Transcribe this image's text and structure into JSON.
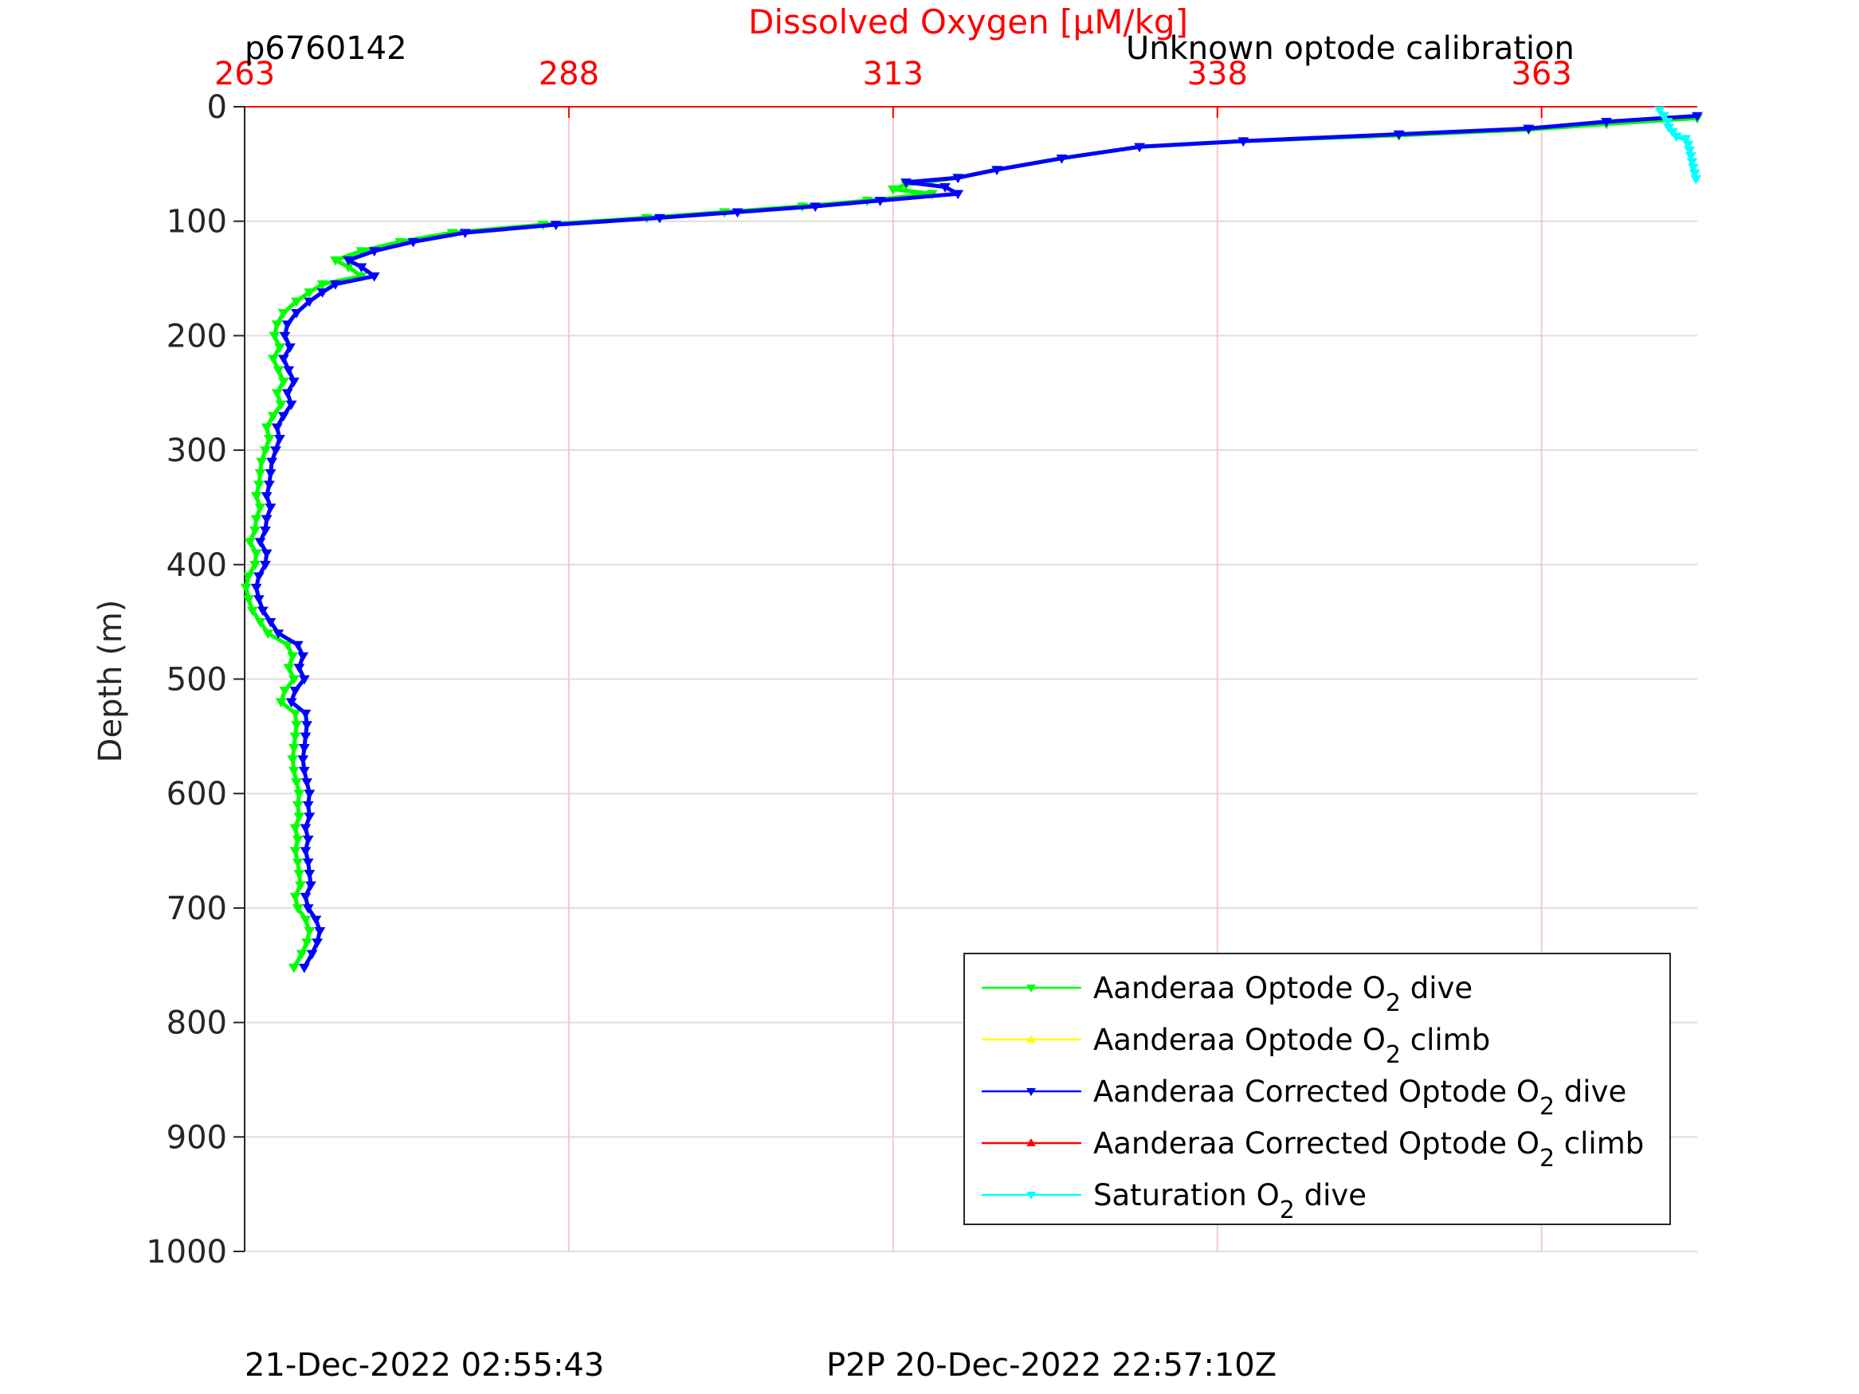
{
  "chart_data": {
    "type": "line",
    "title": "Dissolved Oxygen [μM/kg]",
    "top_left_label": "p6760142",
    "top_right_label": "Unknown optode calibration",
    "xlabel": "Dissolved Oxygen [μM/kg]",
    "ylabel": "Depth (m)",
    "xlim": [
      263,
      375
    ],
    "ylim": [
      0,
      1000
    ],
    "y_reversed": true,
    "x_axis_location": "top",
    "x_ticks": [
      263,
      288,
      313,
      338,
      363
    ],
    "x_tick_labels": [
      "263",
      "288",
      "313",
      "338",
      "363"
    ],
    "y_ticks": [
      0,
      100,
      200,
      300,
      400,
      500,
      600,
      700,
      800,
      900,
      1000
    ],
    "y_tick_labels": [
      "0",
      "100",
      "200",
      "300",
      "400",
      "500",
      "600",
      "700",
      "800",
      "900",
      "1000"
    ],
    "grid": true,
    "legend_position": "bottom-right",
    "series": [
      {
        "name": "Aanderaa Optode O2 dive",
        "legend_main": "Aanderaa Optode O",
        "legend_sub": "2",
        "legend_tail": " dive",
        "color": "#00ff00",
        "marker": "triangle-down",
        "points": [
          [
            375,
            10
          ],
          [
            368,
            15
          ],
          [
            362,
            20
          ],
          [
            352,
            25
          ],
          [
            340,
            30
          ],
          [
            332,
            35
          ],
          [
            326,
            45
          ],
          [
            321,
            55
          ],
          [
            318,
            62
          ],
          [
            314,
            68
          ],
          [
            313,
            72
          ],
          [
            316,
            76
          ],
          [
            311,
            82
          ],
          [
            306,
            87
          ],
          [
            300,
            92
          ],
          [
            294,
            97
          ],
          [
            286,
            103
          ],
          [
            279,
            110
          ],
          [
            275,
            118
          ],
          [
            272,
            126
          ],
          [
            270,
            134
          ],
          [
            271,
            140
          ],
          [
            272,
            148
          ],
          [
            269,
            155
          ],
          [
            268,
            162
          ],
          [
            267,
            170
          ],
          [
            266,
            180
          ],
          [
            265.5,
            190
          ],
          [
            265.3,
            200
          ],
          [
            265.7,
            210
          ],
          [
            265.2,
            220
          ],
          [
            265.6,
            230
          ],
          [
            266,
            240
          ],
          [
            265.5,
            250
          ],
          [
            265.8,
            260
          ],
          [
            265.2,
            270
          ],
          [
            264.7,
            280
          ],
          [
            264.9,
            290
          ],
          [
            264.6,
            300
          ],
          [
            264.3,
            310
          ],
          [
            264.2,
            320
          ],
          [
            264.1,
            330
          ],
          [
            263.9,
            340
          ],
          [
            264.2,
            350
          ],
          [
            263.9,
            360
          ],
          [
            263.8,
            370
          ],
          [
            263.4,
            380
          ],
          [
            263.9,
            390
          ],
          [
            263.8,
            400
          ],
          [
            263.3,
            410
          ],
          [
            263.1,
            420
          ],
          [
            263.3,
            430
          ],
          [
            263.6,
            440
          ],
          [
            264.2,
            450
          ],
          [
            264.8,
            460
          ],
          [
            266.3,
            470
          ],
          [
            266.7,
            480
          ],
          [
            266.4,
            490
          ],
          [
            266.8,
            500
          ],
          [
            266.1,
            510
          ],
          [
            265.8,
            520
          ],
          [
            266.9,
            530
          ],
          [
            267,
            540
          ],
          [
            266.9,
            550
          ],
          [
            266.8,
            560
          ],
          [
            266.7,
            570
          ],
          [
            266.8,
            580
          ],
          [
            267,
            590
          ],
          [
            267.2,
            600
          ],
          [
            267.1,
            610
          ],
          [
            267.2,
            620
          ],
          [
            266.9,
            630
          ],
          [
            267.1,
            640
          ],
          [
            266.9,
            650
          ],
          [
            267.1,
            660
          ],
          [
            267.2,
            670
          ],
          [
            267.3,
            680
          ],
          [
            266.9,
            690
          ],
          [
            267.1,
            700
          ],
          [
            267.7,
            710
          ],
          [
            268,
            720
          ],
          [
            267.8,
            730
          ],
          [
            267.4,
            740
          ],
          [
            266.8,
            752
          ]
        ]
      },
      {
        "name": "Aanderaa Optode O2 climb",
        "legend_main": "Aanderaa Optode O",
        "legend_sub": "2",
        "legend_tail": " climb",
        "color": "#ffff00",
        "marker": "triangle-up",
        "points": []
      },
      {
        "name": "Aanderaa Corrected Optode O2 dive",
        "legend_main": "Aanderaa Corrected Optode O",
        "legend_sub": "2",
        "legend_tail": " dive",
        "color": "#0000ff",
        "marker": "triangle-down",
        "points": [
          [
            375,
            8
          ],
          [
            368,
            13
          ],
          [
            362,
            19
          ],
          [
            352,
            24
          ],
          [
            340,
            30
          ],
          [
            332,
            35
          ],
          [
            326,
            45
          ],
          [
            321,
            55
          ],
          [
            318,
            62
          ],
          [
            314,
            66
          ],
          [
            317,
            70
          ],
          [
            318,
            76
          ],
          [
            312,
            82
          ],
          [
            307,
            87
          ],
          [
            301,
            92
          ],
          [
            295,
            97
          ],
          [
            287,
            103
          ],
          [
            280,
            110
          ],
          [
            276,
            118
          ],
          [
            273,
            126
          ],
          [
            271,
            134
          ],
          [
            272,
            140
          ],
          [
            273,
            148
          ],
          [
            270,
            155
          ],
          [
            269,
            162
          ],
          [
            268,
            170
          ],
          [
            267,
            180
          ],
          [
            266.3,
            190
          ],
          [
            266.1,
            200
          ],
          [
            266.5,
            210
          ],
          [
            266,
            220
          ],
          [
            266.4,
            230
          ],
          [
            266.8,
            240
          ],
          [
            266.3,
            250
          ],
          [
            266.6,
            260
          ],
          [
            266,
            270
          ],
          [
            265.5,
            280
          ],
          [
            265.7,
            290
          ],
          [
            265.4,
            300
          ],
          [
            265.1,
            310
          ],
          [
            265,
            320
          ],
          [
            264.9,
            330
          ],
          [
            264.7,
            340
          ],
          [
            265,
            350
          ],
          [
            264.7,
            360
          ],
          [
            264.6,
            370
          ],
          [
            264.2,
            380
          ],
          [
            264.7,
            390
          ],
          [
            264.6,
            400
          ],
          [
            264.1,
            410
          ],
          [
            263.9,
            420
          ],
          [
            264.1,
            430
          ],
          [
            264.4,
            440
          ],
          [
            265,
            450
          ],
          [
            265.6,
            460
          ],
          [
            267.1,
            470
          ],
          [
            267.5,
            480
          ],
          [
            267.2,
            490
          ],
          [
            267.6,
            500
          ],
          [
            266.9,
            510
          ],
          [
            266.6,
            520
          ],
          [
            267.7,
            530
          ],
          [
            267.8,
            540
          ],
          [
            267.7,
            550
          ],
          [
            267.6,
            560
          ],
          [
            267.5,
            570
          ],
          [
            267.6,
            580
          ],
          [
            267.8,
            590
          ],
          [
            268,
            600
          ],
          [
            267.9,
            610
          ],
          [
            268,
            620
          ],
          [
            267.7,
            630
          ],
          [
            267.9,
            640
          ],
          [
            267.7,
            650
          ],
          [
            267.9,
            660
          ],
          [
            268,
            670
          ],
          [
            268.1,
            680
          ],
          [
            267.7,
            690
          ],
          [
            267.9,
            700
          ],
          [
            268.5,
            710
          ],
          [
            268.8,
            720
          ],
          [
            268.6,
            730
          ],
          [
            268.2,
            740
          ],
          [
            267.6,
            752
          ]
        ]
      },
      {
        "name": "Aanderaa Corrected Optode O2 climb",
        "legend_main": "Aanderaa Corrected Optode O",
        "legend_sub": "2",
        "legend_tail": " climb",
        "color": "#ff0000",
        "marker": "triangle-up",
        "points": []
      },
      {
        "name": "Saturation O2 dive",
        "legend_main": "Saturation O",
        "legend_sub": "2",
        "legend_tail": " dive",
        "color": "#00ffff",
        "marker": "triangle-down",
        "points": [
          [
            372.1,
            3
          ],
          [
            372.4,
            8
          ],
          [
            372.7,
            13
          ],
          [
            372.8,
            18
          ],
          [
            373.1,
            22
          ],
          [
            373.4,
            26
          ],
          [
            374.1,
            28
          ],
          [
            374.3,
            33
          ],
          [
            374.4,
            38
          ],
          [
            374.5,
            43
          ],
          [
            374.6,
            48
          ],
          [
            374.7,
            53
          ],
          [
            374.8,
            58
          ],
          [
            374.9,
            63
          ]
        ]
      }
    ]
  },
  "footer": {
    "left": "21-Dec-2022 02:55:43",
    "right": "P2P 20-Dec-2022 22:57:10Z"
  },
  "colors": {
    "x_axis": "#ff0000",
    "x_grid": "#f3c9cf",
    "y_grid": "#dedede",
    "axis_text": "#262626"
  }
}
